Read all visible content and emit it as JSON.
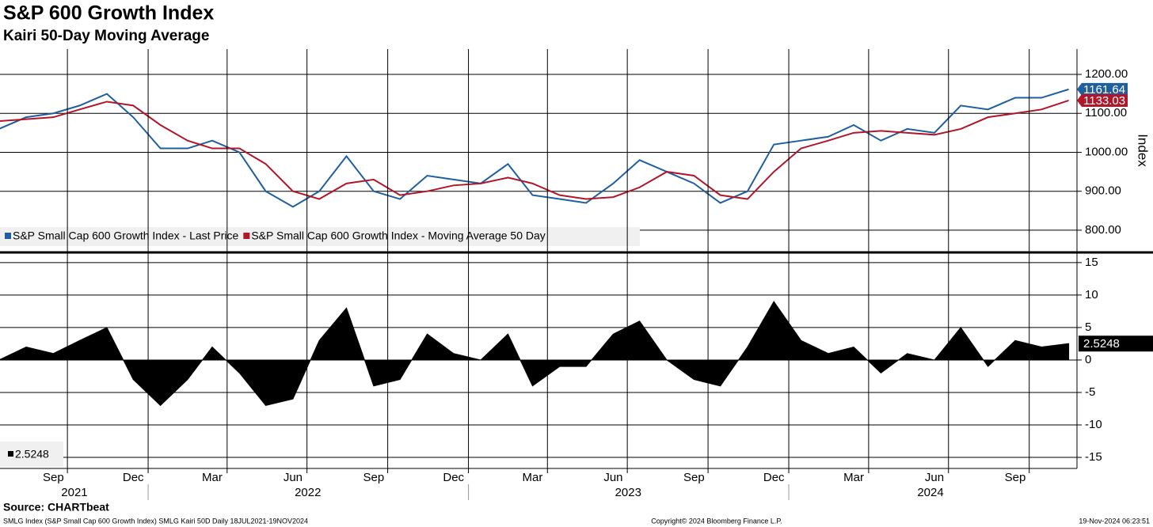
{
  "chart_data": [
    {
      "type": "line",
      "title": "S&P 600 Growth Index",
      "subtitle": "Kairi 50-Day Moving Average",
      "ylabel": "Index",
      "x": [
        "2021-07",
        "2021-08",
        "2021-09",
        "2021-10",
        "2021-11",
        "2021-12",
        "2022-01",
        "2022-02",
        "2022-03",
        "2022-04",
        "2022-05",
        "2022-06",
        "2022-07",
        "2022-08",
        "2022-09",
        "2022-10",
        "2022-11",
        "2022-12",
        "2023-01",
        "2023-02",
        "2023-03",
        "2023-04",
        "2023-05",
        "2023-06",
        "2023-07",
        "2023-08",
        "2023-09",
        "2023-10",
        "2023-11",
        "2023-12",
        "2024-01",
        "2024-02",
        "2024-03",
        "2024-04",
        "2024-05",
        "2024-06",
        "2024-07",
        "2024-08",
        "2024-09",
        "2024-10",
        "2024-11"
      ],
      "series": [
        {
          "name": "S&P Small Cap 600 Growth Index - Last Price",
          "color": "#1f5fa0",
          "values": [
            1060,
            1090,
            1100,
            1120,
            1150,
            1090,
            1010,
            1010,
            1030,
            1000,
            900,
            860,
            900,
            990,
            900,
            880,
            940,
            930,
            920,
            970,
            890,
            880,
            870,
            920,
            980,
            950,
            920,
            870,
            900,
            1020,
            1030,
            1040,
            1070,
            1030,
            1060,
            1050,
            1120,
            1110,
            1140,
            1140,
            1161.64
          ]
        },
        {
          "name": "S&P Small Cap 600 Growth Index - Moving Average 50 Day",
          "color": "#b0172b",
          "values": [
            1080,
            1085,
            1090,
            1110,
            1130,
            1120,
            1070,
            1030,
            1010,
            1010,
            970,
            900,
            880,
            920,
            930,
            890,
            900,
            915,
            920,
            935,
            920,
            890,
            880,
            885,
            910,
            950,
            940,
            890,
            880,
            950,
            1010,
            1030,
            1050,
            1055,
            1050,
            1045,
            1060,
            1090,
            1100,
            1110,
            1133.03
          ]
        }
      ],
      "ylim": [
        745,
        1265
      ],
      "yticks": [
        {
          "value": 800,
          "label": "800.00"
        },
        {
          "value": 900,
          "label": "900.00"
        },
        {
          "value": 1000,
          "label": "1000.00"
        },
        {
          "value": 1100,
          "label": "1100.00"
        },
        {
          "value": 1200,
          "label": "1200.00"
        }
      ],
      "grid": true,
      "legend": "bottom-left"
    },
    {
      "type": "area",
      "x": [
        "2021-07",
        "2021-08",
        "2021-09",
        "2021-10",
        "2021-11",
        "2021-12",
        "2022-01",
        "2022-02",
        "2022-03",
        "2022-04",
        "2022-05",
        "2022-06",
        "2022-07",
        "2022-08",
        "2022-09",
        "2022-10",
        "2022-11",
        "2022-12",
        "2023-01",
        "2023-02",
        "2023-03",
        "2023-04",
        "2023-05",
        "2023-06",
        "2023-07",
        "2023-08",
        "2023-09",
        "2023-10",
        "2023-11",
        "2023-12",
        "2024-01",
        "2024-02",
        "2024-03",
        "2024-04",
        "2024-05",
        "2024-06",
        "2024-07",
        "2024-08",
        "2024-09",
        "2024-10",
        "2024-11"
      ],
      "series": [
        {
          "color": "#000000",
          "values": [
            0,
            2,
            1,
            3,
            5,
            -3,
            -7,
            -3,
            2,
            -2,
            -7,
            -6,
            3,
            8,
            -4,
            -3,
            4,
            1,
            0,
            4,
            -4,
            -1,
            -1,
            4,
            6,
            0,
            -3,
            -4,
            2,
            9,
            3,
            1,
            2,
            -2,
            1,
            0,
            5,
            -1,
            3,
            2,
            2.5248
          ]
        }
      ],
      "ylim": [
        -16.7,
        16.2
      ],
      "yticks": [
        -15,
        -10,
        -5,
        0,
        5,
        10,
        15
      ],
      "xlim": [
        "2021-07-18",
        "2024-11-19"
      ],
      "xticks": [
        {
          "value": "2021-09",
          "label": "Sep"
        },
        {
          "value": "2021-12",
          "label": "Dec"
        },
        {
          "value": "2022-03",
          "label": "Mar"
        },
        {
          "value": "2022-06",
          "label": "Jun"
        },
        {
          "value": "2022-09",
          "label": "Sep"
        },
        {
          "value": "2022-12",
          "label": "Dec"
        },
        {
          "value": "2023-03",
          "label": "Mar"
        },
        {
          "value": "2023-06",
          "label": "Jun"
        },
        {
          "value": "2023-09",
          "label": "Sep"
        },
        {
          "value": "2023-12",
          "label": "Dec"
        },
        {
          "value": "2024-03",
          "label": "Mar"
        },
        {
          "value": "2024-06",
          "label": "Jun"
        },
        {
          "value": "2024-09",
          "label": "Sep"
        }
      ],
      "year_labels": [
        "2021",
        "2022",
        "2023",
        "2024"
      ],
      "grid": true
    }
  ],
  "source": "Source: CHARTbeat",
  "footer": {
    "left": "SMLG Index (S&P Small Cap 600 Growth Index) SMLG Kairi 50D  Daily 18JUL2021-19NOV2024",
    "center": "Copyright© 2024 Bloomberg Finance L.P.",
    "right": "19-Nov-2024 06:23:51"
  }
}
